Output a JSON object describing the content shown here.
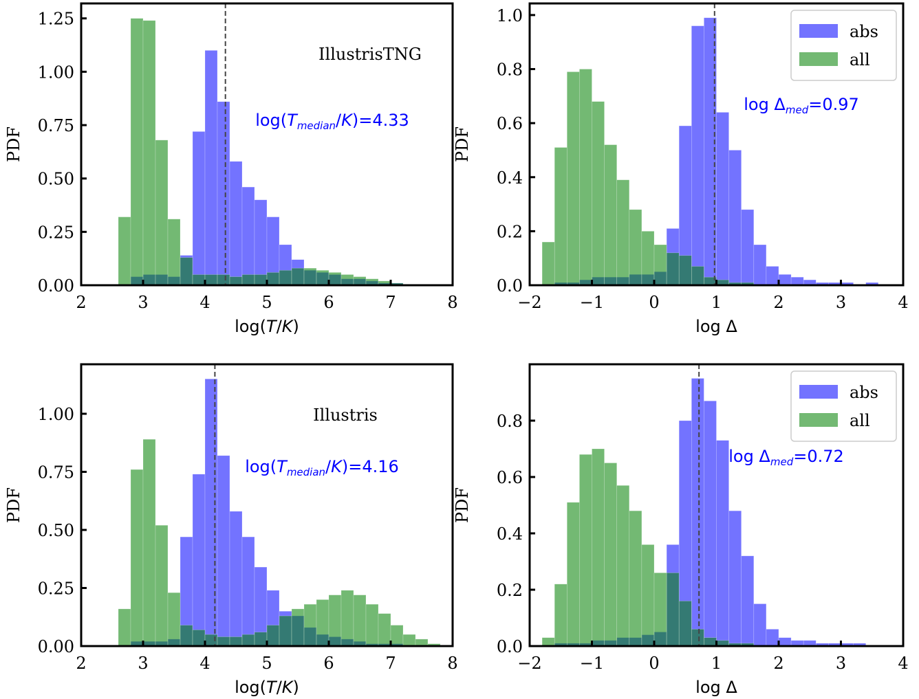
{
  "chart_data": [
    {
      "type": "histogram",
      "bins": [
        2.6,
        2.8,
        3.0,
        3.2,
        3.4,
        3.6,
        3.8,
        4.0,
        4.2,
        4.4,
        4.6,
        4.8,
        5.0,
        5.2,
        5.4,
        5.6,
        5.8,
        6.0,
        6.2,
        6.4,
        6.6,
        6.8,
        7.0,
        7.2,
        7.4,
        7.6,
        7.8
      ],
      "series": [
        {
          "color": "#0000ff",
          "values": [
            0,
            0.04,
            0.05,
            0.05,
            0.04,
            0.14,
            0.72,
            1.1,
            0.86,
            0.58,
            0.46,
            0.4,
            0.32,
            0.19,
            0.12,
            0.07,
            0.06,
            0.05,
            0.03,
            0.03,
            0.02,
            0.01,
            0.01,
            0,
            0,
            0
          ]
        },
        {
          "color": "#008000",
          "values": [
            0.32,
            1.25,
            1.24,
            0.68,
            0.31,
            0.13,
            0.05,
            0.05,
            0.05,
            0.04,
            0.05,
            0.05,
            0.06,
            0.07,
            0.08,
            0.08,
            0.07,
            0.06,
            0.05,
            0.04,
            0.03,
            0.02,
            0.01,
            0,
            0,
            0
          ]
        }
      ],
      "xlim": [
        2,
        8
      ],
      "ylim": [
        0,
        1.32
      ],
      "xticks": [
        2,
        3,
        4,
        5,
        6,
        7,
        8
      ],
      "yticks": [
        {
          "value": 0,
          "label": "0.00"
        },
        {
          "value": 0.25,
          "label": "0.25"
        },
        {
          "value": 0.5,
          "label": "0.50"
        },
        {
          "value": 0.75,
          "label": "0.75"
        },
        {
          "value": 1,
          "label": "1.00"
        },
        {
          "value": 1.25,
          "label": "1.25"
        }
      ],
      "xlabel": [
        {
          "text": "log("
        },
        {
          "text": "T",
          "style": "italic"
        },
        {
          "text": "/"
        },
        {
          "text": "K",
          "style": "italic"
        },
        {
          "text": ")"
        }
      ],
      "ylabel": "PDF",
      "annotation": "IllustrisTNG",
      "median": 4.33,
      "median_label": [
        {
          "text": "log("
        },
        {
          "text": "T",
          "style": "italic"
        },
        {
          "text": "median",
          "style": "italic-sub"
        },
        {
          "text": "/"
        },
        {
          "text": "K",
          "style": "italic"
        },
        {
          "text": ")=4.33"
        }
      ]
    },
    {
      "type": "histogram",
      "bins": [
        -1.8,
        -1.6,
        -1.4,
        -1.2,
        -1.0,
        -0.8,
        -0.6,
        -0.4,
        -0.2,
        0.0,
        0.2,
        0.4,
        0.6,
        0.8,
        1.0,
        1.2,
        1.4,
        1.6,
        1.8,
        2.0,
        2.2,
        2.4,
        2.6,
        2.8,
        3.0,
        3.2,
        3.4,
        3.6
      ],
      "series": [
        {
          "name": "abs",
          "color": "#0000ff",
          "values": [
            0,
            0.01,
            0.01,
            0.02,
            0.03,
            0.03,
            0.03,
            0.04,
            0.04,
            0.05,
            0.21,
            0.59,
            0.96,
            0.99,
            0.64,
            0.5,
            0.28,
            0.15,
            0.07,
            0.04,
            0.03,
            0.02,
            0.01,
            0.01,
            0.01,
            0,
            0.01
          ]
        },
        {
          "name": "all",
          "color": "#008000",
          "values": [
            0.16,
            0.51,
            0.79,
            0.8,
            0.68,
            0.52,
            0.39,
            0.28,
            0.2,
            0.15,
            0.12,
            0.11,
            0.07,
            0.03,
            0.02,
            0.01,
            0.01,
            0,
            0,
            0,
            0,
            0,
            0,
            0,
            0,
            0,
            0
          ]
        }
      ],
      "xlim": [
        -2,
        4
      ],
      "ylim": [
        0,
        1.043
      ],
      "xticks": [
        {
          "value": -2,
          "label": "−2"
        },
        {
          "value": -1,
          "label": "−1"
        },
        0,
        1,
        2,
        3,
        4
      ],
      "yticks": [
        {
          "value": 0,
          "label": "0.0"
        },
        0.2,
        0.4,
        0.6,
        0.8,
        {
          "value": 1,
          "label": "1.0"
        }
      ],
      "xlabel": [
        {
          "text": "log Δ"
        }
      ],
      "ylabel": "PDF",
      "legend": "upper right",
      "median": 0.97,
      "median_label": [
        {
          "text": "log Δ"
        },
        {
          "text": "med",
          "style": "italic-sub"
        },
        {
          "text": "=0.97"
        }
      ]
    },
    {
      "type": "histogram",
      "bins": [
        2.6,
        2.8,
        3.0,
        3.2,
        3.4,
        3.6,
        3.8,
        4.0,
        4.2,
        4.4,
        4.6,
        4.8,
        5.0,
        5.2,
        5.4,
        5.6,
        5.8,
        6.0,
        6.2,
        6.4,
        6.6,
        6.8,
        7.0,
        7.2,
        7.4,
        7.6,
        7.8
      ],
      "series": [
        {
          "color": "#0000ff",
          "values": [
            0,
            0.02,
            0.02,
            0.02,
            0.03,
            0.47,
            0.74,
            1.15,
            0.82,
            0.58,
            0.47,
            0.34,
            0.24,
            0.15,
            0.13,
            0.08,
            0.05,
            0.04,
            0.03,
            0.02,
            0.01,
            0.01,
            0.01,
            0,
            0,
            0
          ]
        },
        {
          "color": "#008000",
          "values": [
            0.16,
            0.76,
            0.89,
            0.52,
            0.23,
            0.09,
            0.07,
            0.05,
            0.04,
            0.04,
            0.05,
            0.06,
            0.09,
            0.13,
            0.16,
            0.18,
            0.2,
            0.22,
            0.24,
            0.22,
            0.18,
            0.14,
            0.09,
            0.05,
            0.03,
            0.01
          ]
        }
      ],
      "xlim": [
        2,
        8
      ],
      "ylim": [
        0,
        1.213
      ],
      "xticks": [
        2,
        3,
        4,
        5,
        6,
        7,
        8
      ],
      "yticks": [
        {
          "value": 0,
          "label": "0.00"
        },
        {
          "value": 0.25,
          "label": "0.25"
        },
        {
          "value": 0.5,
          "label": "0.50"
        },
        {
          "value": 0.75,
          "label": "0.75"
        },
        {
          "value": 1,
          "label": "1.00"
        }
      ],
      "xlabel": [
        {
          "text": "log("
        },
        {
          "text": "T",
          "style": "italic"
        },
        {
          "text": "/"
        },
        {
          "text": "K",
          "style": "italic"
        },
        {
          "text": ")"
        }
      ],
      "ylabel": "PDF",
      "annotation": "Illustris",
      "median": 4.16,
      "median_label": [
        {
          "text": "log("
        },
        {
          "text": "T",
          "style": "italic"
        },
        {
          "text": "median",
          "style": "italic-sub"
        },
        {
          "text": "/"
        },
        {
          "text": "K",
          "style": "italic"
        },
        {
          "text": ")=4.16"
        }
      ]
    },
    {
      "type": "histogram",
      "bins": [
        -1.8,
        -1.6,
        -1.4,
        -1.2,
        -1.0,
        -0.8,
        -0.6,
        -0.4,
        -0.2,
        0.0,
        0.2,
        0.4,
        0.6,
        0.8,
        1.0,
        1.2,
        1.4,
        1.6,
        1.8,
        2.0,
        2.2,
        2.4,
        2.6,
        2.8,
        3.0,
        3.2,
        3.4,
        3.6
      ],
      "series": [
        {
          "name": "abs",
          "color": "#0000ff",
          "values": [
            0,
            0.01,
            0.01,
            0.01,
            0.02,
            0.02,
            0.03,
            0.03,
            0.04,
            0.05,
            0.36,
            0.8,
            0.95,
            0.87,
            0.73,
            0.48,
            0.32,
            0.15,
            0.06,
            0.03,
            0.02,
            0.02,
            0.01,
            0.01,
            0.01,
            0.01,
            0
          ]
        },
        {
          "name": "all",
          "color": "#008000",
          "values": [
            0.03,
            0.22,
            0.51,
            0.68,
            0.7,
            0.65,
            0.57,
            0.48,
            0.36,
            0.26,
            0.26,
            0.16,
            0.06,
            0.03,
            0.02,
            0.01,
            0.01,
            0,
            0,
            0,
            0,
            0,
            0,
            0,
            0,
            0,
            0
          ]
        }
      ],
      "xlim": [
        -2,
        4
      ],
      "ylim": [
        0,
        1.0
      ],
      "xticks": [
        {
          "value": -2,
          "label": "−2"
        },
        {
          "value": -1,
          "label": "−1"
        },
        0,
        1,
        2,
        3,
        4
      ],
      "yticks": [
        {
          "value": 0,
          "label": "0.0"
        },
        0.2,
        0.4,
        0.6,
        0.8
      ],
      "xlabel": [
        {
          "text": "log Δ"
        }
      ],
      "ylabel": "PDF",
      "legend": "upper right",
      "median": 0.72,
      "median_label": [
        {
          "text": "log Δ"
        },
        {
          "text": "med",
          "style": "italic-sub"
        },
        {
          "text": "=0.72"
        }
      ]
    }
  ]
}
